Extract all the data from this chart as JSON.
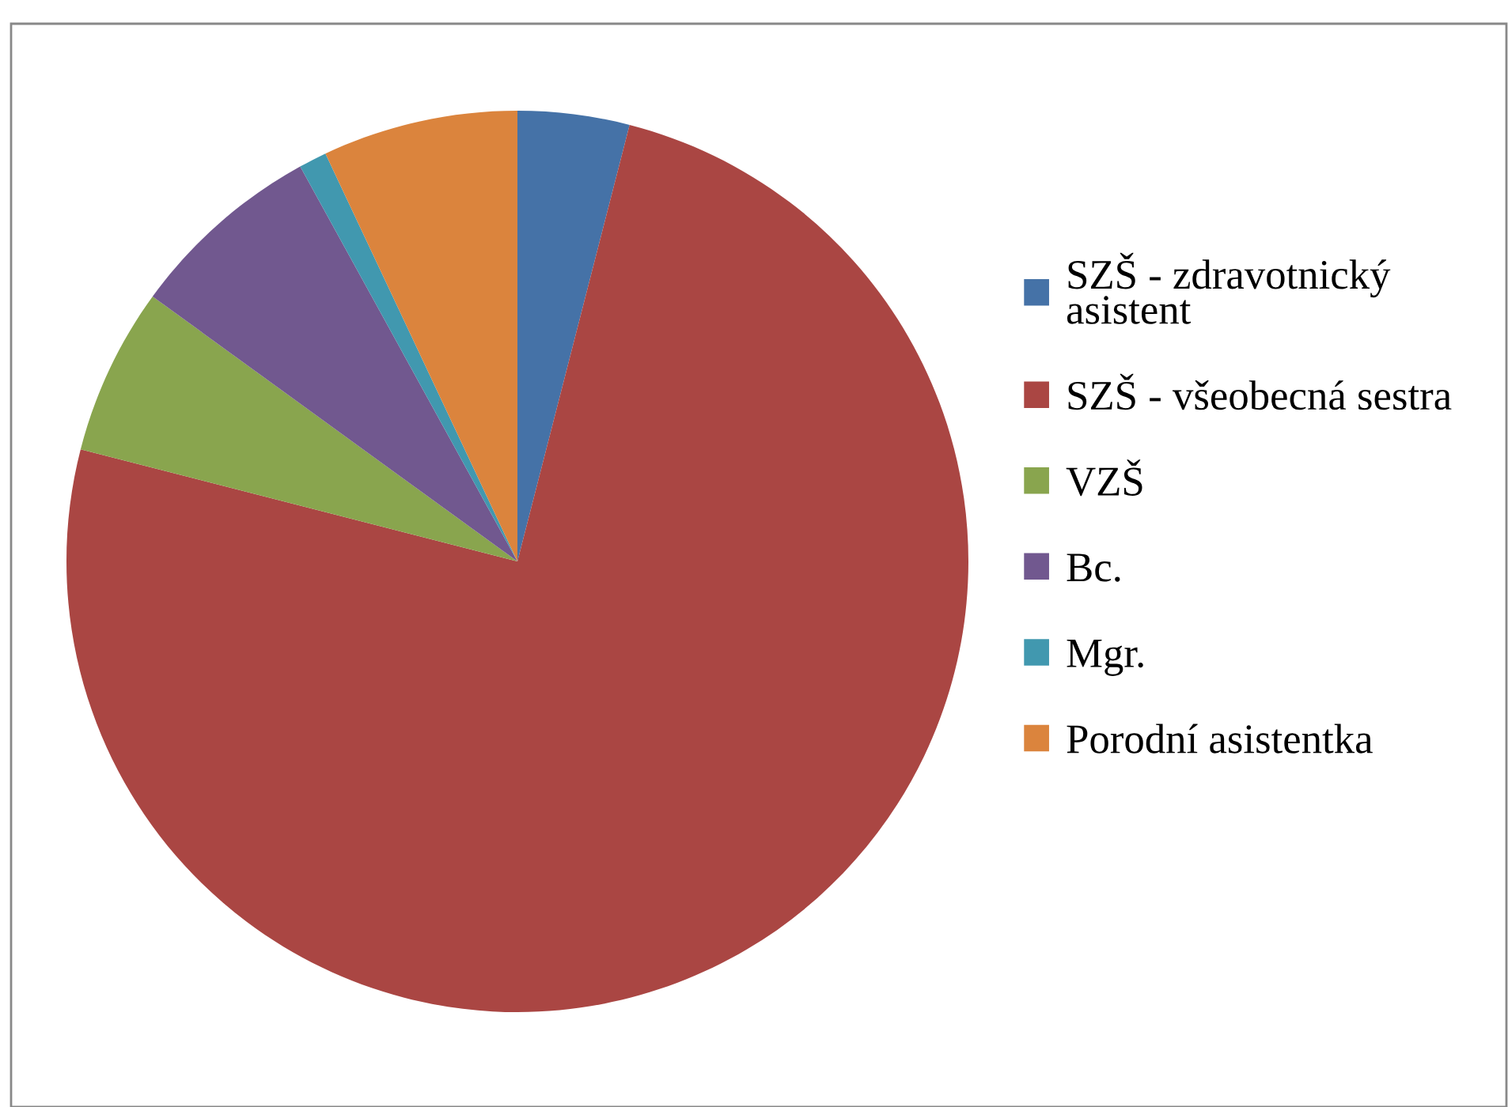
{
  "chart_data": {
    "type": "pie",
    "categories": [
      "SZŠ - zdravotnický asistent",
      "SZŠ - všeobecná sestra",
      "VZŠ",
      "Bc.",
      "Mgr.",
      "Porodní asistentka"
    ],
    "values": [
      4,
      75,
      6,
      7,
      1,
      7
    ],
    "colors": [
      "#4572a7",
      "#aa4643",
      "#89a54e",
      "#71588f",
      "#4198af",
      "#db843d"
    ],
    "legend": "right"
  }
}
